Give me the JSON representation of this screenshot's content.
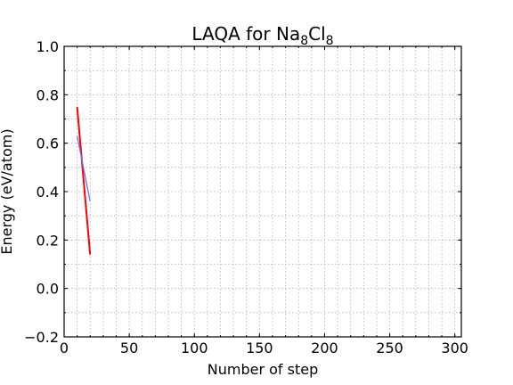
{
  "chart_data": {
    "type": "line",
    "title": "LAQA for Na₈Cl₈",
    "title_parts": {
      "prefix": "LAQA for Na",
      "sub1": "8",
      "mid": "Cl",
      "sub2": "8"
    },
    "xlabel": "Number of step",
    "ylabel": "Energy (eV/atom)",
    "xlim": [
      0,
      305
    ],
    "ylim": [
      -0.2,
      1.0
    ],
    "xticks": [
      0,
      50,
      100,
      150,
      200,
      250,
      300
    ],
    "yticks": [
      -0.2,
      0.0,
      0.2,
      0.4,
      0.6,
      0.8,
      1.0
    ],
    "xtick_labels": [
      "0",
      "50",
      "100",
      "150",
      "200",
      "250",
      "300"
    ],
    "ytick_labels": [
      "−0.2",
      "0.0",
      "0.2",
      "0.4",
      "0.6",
      "0.8",
      "1.0"
    ],
    "minor_x_step": 10,
    "minor_y_step": 0.1,
    "grid": true,
    "series": [
      {
        "color": "#ff0000",
        "width": 2,
        "points": [
          [
            10,
            0.75
          ],
          [
            20,
            0.14
          ]
        ]
      },
      {
        "color": "#6677ff",
        "width": 1.3,
        "points": [
          [
            10,
            0.63
          ],
          [
            20,
            0.36
          ]
        ]
      }
    ]
  }
}
